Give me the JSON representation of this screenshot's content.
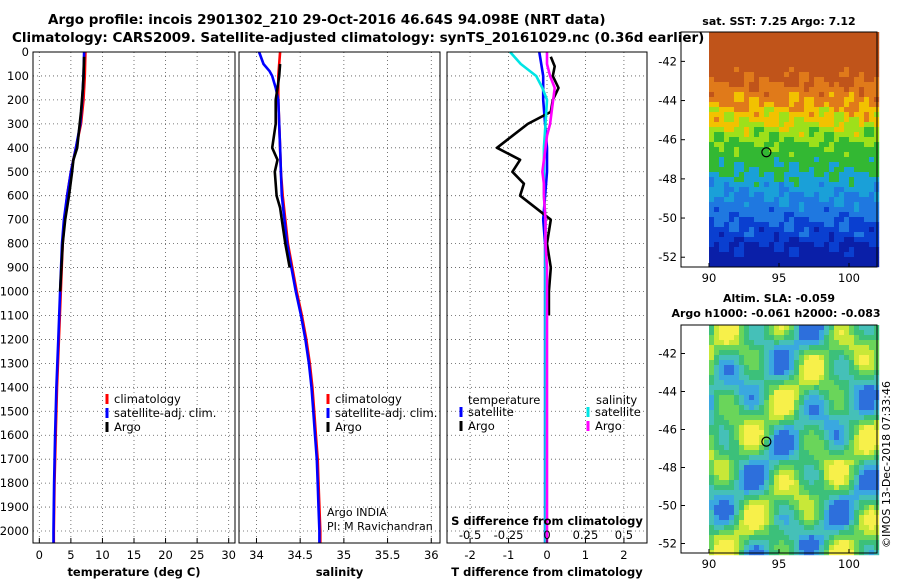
{
  "title_line1": "Argo profile: incois 2901302_210 29-Oct-2016 46.64S 94.098E (NRT data)",
  "title_line2": "Climatology: CARS2009. Satellite-adjusted climatology: synTS_20161029.nc (0.36d earlier)",
  "credit": "Argo INDIA",
  "credit_pi": "PI: M Ravichandran",
  "footer": "©IMOS 13-Dec-2018 07:33:46",
  "colors": {
    "climatology": "#ff0000",
    "satellite": "#0000ff",
    "argo": "#000000",
    "s_satellite": "#00e5e5",
    "s_argo": "#ff00ff"
  },
  "chart_data": [
    {
      "type": "line",
      "title": "",
      "xlabel": "temperature (deg C)",
      "ylabel": "",
      "xlim": [
        -1,
        31
      ],
      "ylim": [
        2050,
        0
      ],
      "xticks": [
        "0",
        "5",
        "10",
        "15",
        "20",
        "25",
        "30"
      ],
      "xtick_values": [
        0,
        5,
        10,
        15,
        20,
        25,
        30
      ],
      "yticks": [
        "0",
        "100",
        "200",
        "300",
        "400",
        "500",
        "600",
        "700",
        "800",
        "900",
        "1000",
        "1100",
        "1200",
        "1300",
        "1400",
        "1500",
        "1600",
        "1700",
        "1800",
        "1900",
        "2000"
      ],
      "ytick_values": [
        0,
        100,
        200,
        300,
        400,
        500,
        600,
        700,
        800,
        900,
        1000,
        1100,
        1200,
        1300,
        1400,
        1500,
        1600,
        1700,
        1800,
        1900,
        2000
      ],
      "legend": [
        "climatology",
        "satellite-adj. clim.",
        "Argo"
      ],
      "series": [
        {
          "name": "climatology",
          "color": "climatology",
          "y": [
            0,
            100,
            200,
            300,
            400,
            500,
            600,
            700,
            800,
            1000,
            1200,
            1400,
            1600,
            1800,
            2000,
            2050
          ],
          "x": [
            7.3,
            7.2,
            7.0,
            6.6,
            5.8,
            5.0,
            4.4,
            4.0,
            3.7,
            3.4,
            3.1,
            2.8,
            2.6,
            2.4,
            2.3,
            2.3
          ]
        },
        {
          "name": "satellite-adj. clim.",
          "color": "satellite",
          "y": [
            0,
            100,
            200,
            300,
            400,
            500,
            600,
            700,
            800,
            1000,
            1200,
            1400,
            1600,
            1800,
            2000,
            2050
          ],
          "x": [
            7.1,
            7.0,
            6.8,
            6.5,
            5.8,
            5.0,
            4.4,
            3.9,
            3.6,
            3.3,
            3.0,
            2.7,
            2.5,
            2.35,
            2.25,
            2.25
          ]
        },
        {
          "name": "Argo",
          "color": "argo",
          "y": [
            20,
            100,
            150,
            250,
            300,
            400,
            450,
            500,
            600,
            700,
            800,
            900,
            1000
          ],
          "x": [
            7.1,
            7.0,
            6.9,
            6.6,
            6.4,
            6.0,
            5.4,
            5.2,
            4.7,
            4.1,
            3.7,
            3.5,
            3.3
          ]
        }
      ]
    },
    {
      "type": "line",
      "title": "",
      "xlabel": "salinity",
      "ylabel": "",
      "xlim": [
        33.8,
        36.1
      ],
      "ylim": [
        2050,
        0
      ],
      "xticks": [
        "34",
        "34.5",
        "35",
        "35.5",
        "36"
      ],
      "xtick_values": [
        34,
        34.5,
        35,
        35.5,
        36
      ],
      "legend": [
        "climatology",
        "satellite-adj. clim.",
        "Argo"
      ],
      "series": [
        {
          "name": "climatology",
          "color": "climatology",
          "y": [
            0,
            100,
            200,
            300,
            400,
            500,
            600,
            700,
            800,
            900,
            1000,
            1100,
            1200,
            1300,
            1400,
            1500,
            1600,
            1700,
            1800,
            1900,
            2000,
            2050
          ],
          "x": [
            34.27,
            34.25,
            34.25,
            34.26,
            34.27,
            34.28,
            34.3,
            34.33,
            34.36,
            34.41,
            34.46,
            34.52,
            34.57,
            34.61,
            34.64,
            34.66,
            34.68,
            34.7,
            34.71,
            34.72,
            34.73,
            34.73
          ]
        },
        {
          "name": "satellite-adj. clim.",
          "color": "satellite",
          "y": [
            0,
            50,
            80,
            100,
            150,
            200,
            300,
            400,
            500,
            600,
            700,
            800,
            900,
            1000,
            1100,
            1200,
            1300,
            1400,
            1500,
            1600,
            1700,
            1800,
            1900,
            2000,
            2050
          ],
          "x": [
            34.03,
            34.08,
            34.15,
            34.18,
            34.22,
            34.25,
            34.26,
            34.27,
            34.28,
            34.29,
            34.32,
            34.35,
            34.4,
            34.45,
            34.51,
            34.56,
            34.6,
            34.63,
            34.65,
            34.67,
            34.69,
            34.7,
            34.71,
            34.72,
            34.72
          ]
        },
        {
          "name": "Argo",
          "color": "argo",
          "y": [
            50,
            100,
            150,
            200,
            300,
            400,
            450,
            500,
            600,
            650,
            700,
            800,
            900
          ],
          "x": [
            34.27,
            34.26,
            34.24,
            34.22,
            34.22,
            34.18,
            34.24,
            34.21,
            34.23,
            34.27,
            34.29,
            34.33,
            34.38
          ]
        }
      ]
    },
    {
      "type": "line",
      "title": "",
      "xlabel": "T difference from climatology",
      "xlabel_top": "S difference from climatology",
      "xlim": [
        -2.6,
        2.6
      ],
      "ylim": [
        2050,
        0
      ],
      "xticks": [
        "-2",
        "-1",
        "0",
        "1",
        "2"
      ],
      "xtick_values": [
        -2,
        -1,
        0,
        1,
        2
      ],
      "s_xticks": [
        "-0.5",
        "-0.25",
        "0",
        "0.25",
        "0.5"
      ],
      "s_xtick_values": [
        -0.5,
        -0.25,
        0,
        0.25,
        0.5
      ],
      "legend_left_title": "temperature",
      "legend_right_title": "salinity",
      "legend_left": [
        "satellite",
        "Argo"
      ],
      "legend_right": [
        "satellite",
        "Argo"
      ],
      "series": [
        {
          "name": "T satellite",
          "color": "satellite",
          "y": [
            0,
            100,
            200,
            300,
            400,
            500,
            600,
            700,
            800,
            900,
            1000,
            1200,
            1400,
            1600,
            1800,
            2000,
            2050
          ],
          "x": [
            -0.2,
            -0.1,
            -0.1,
            -0.05,
            0,
            0,
            -0.05,
            -0.1,
            -0.05,
            -0.05,
            -0.05,
            -0.05,
            -0.05,
            -0.05,
            -0.05,
            -0.05,
            -0.05
          ]
        },
        {
          "name": "T Argo",
          "color": "argo",
          "y": [
            20,
            60,
            100,
            150,
            200,
            250,
            300,
            350,
            400,
            450,
            500,
            550,
            600,
            650,
            700,
            800,
            900,
            1000,
            1100
          ],
          "x": [
            0.1,
            0.2,
            0.15,
            0.3,
            0.15,
            0.1,
            -0.5,
            -0.9,
            -1.3,
            -0.7,
            -0.9,
            -0.6,
            -0.7,
            -0.3,
            0.1,
            0,
            0.1,
            0.05,
            0.05
          ]
        },
        {
          "name": "S satellite",
          "color": "s_satellite",
          "y": [
            0,
            50,
            100,
            150,
            200,
            300,
            400,
            500,
            600,
            700,
            800,
            900,
            1000,
            1200,
            1400,
            1600,
            1800,
            2000,
            2050
          ],
          "x": [
            -0.24,
            -0.17,
            -0.07,
            -0.03,
            0,
            -0.01,
            -0.02,
            -0.02,
            -0.02,
            -0.01,
            -0.01,
            -0.01,
            -0.01,
            -0.01,
            -0.01,
            -0.01,
            -0.01,
            -0.01,
            -0.01
          ]
        },
        {
          "name": "S Argo",
          "color": "s_argo",
          "y": [
            0,
            50,
            100,
            150,
            200,
            250,
            300,
            350,
            400,
            450,
            500,
            550,
            600,
            700,
            800,
            900,
            1000,
            1200,
            1400,
            1600,
            1800,
            2000,
            2050
          ],
          "x": [
            0,
            0,
            0.02,
            0.05,
            0.04,
            0.03,
            0.02,
            0.0,
            -0.01,
            -0.02,
            -0.03,
            -0.02,
            -0.02,
            -0.01,
            -0.01,
            0,
            0,
            0,
            0,
            0,
            0,
            0,
            0
          ]
        }
      ]
    },
    {
      "type": "heatmap",
      "title": "sat. SST: 7.25 Argo: 7.12",
      "xlim": [
        88,
        102
      ],
      "ylim": [
        -52.5,
        -40.5
      ],
      "xticks": [
        "90",
        "95",
        "100"
      ],
      "xtick_values": [
        90,
        95,
        100
      ],
      "yticks": [
        "-42",
        "-44",
        "-46",
        "-48",
        "-50",
        "-52"
      ],
      "ytick_values": [
        -42,
        -44,
        -46,
        -48,
        -50,
        -52
      ],
      "marker": {
        "lon": 94.098,
        "lat": -46.64
      }
    },
    {
      "type": "heatmap",
      "title": "Altim. SLA: -0.059",
      "subtitle": "Argo h1000: -0.061 h2000: -0.083",
      "xlim": [
        88,
        102
      ],
      "ylim": [
        -52.5,
        -40.5
      ],
      "xticks": [
        "90",
        "95",
        "100"
      ],
      "xtick_values": [
        90,
        95,
        100
      ],
      "yticks": [
        "-42",
        "-44",
        "-46",
        "-48",
        "-50",
        "-52"
      ],
      "ytick_values": [
        -42,
        -44,
        -46,
        -48,
        -50,
        -52
      ],
      "marker": {
        "lon": 94.098,
        "lat": -46.64
      }
    }
  ]
}
